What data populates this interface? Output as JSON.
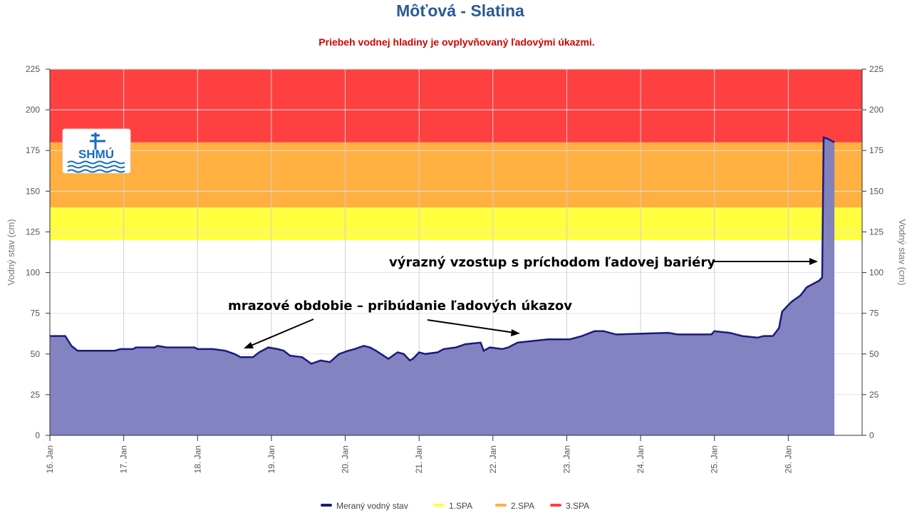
{
  "title": "Môťová - Slatina",
  "subtitle": "Priebeh vodnej hladiny je ovplyvňovaný ľadovými úkazmi.",
  "logo_text": "SHMÚ",
  "chart_data": {
    "type": "area",
    "xlim": [
      "16.01 00:00",
      "27.01 00:00"
    ],
    "ylim": [
      0,
      225
    ],
    "yticks": [
      0,
      25,
      50,
      75,
      100,
      125,
      150,
      175,
      200,
      225
    ],
    "xtick_labels": [
      "16. Jan",
      "17. Jan",
      "18. Jan",
      "19. Jan",
      "20. Jan",
      "21. Jan",
      "22. Jan",
      "23. Jan",
      "24. Jan",
      "25. Jan",
      "26. Jan"
    ],
    "ylabel_left": "Vodný stav (cm)",
    "ylabel_right": "Vodný stav (cm)",
    "grid": true,
    "legend_position": "bottom",
    "thresholds": [
      {
        "name": "1.SPA",
        "from": 120,
        "to": 140,
        "color": "#ffff40"
      },
      {
        "name": "2.SPA",
        "from": 140,
        "to": 180,
        "color": "#ffb040"
      },
      {
        "name": "3.SPA",
        "from": 180,
        "to": 225,
        "color": "#ff4040"
      }
    ],
    "series": [
      {
        "name": "Meraný vodný stav",
        "line_color": "#1a1a80",
        "fill_color": "#7f7fbf",
        "points": [
          [
            "16.01 00:00",
            61
          ],
          [
            "16.01 05:00",
            61
          ],
          [
            "16.01 07:00",
            55
          ],
          [
            "16.01 09:00",
            52
          ],
          [
            "16.01 21:00",
            52
          ],
          [
            "16.01 23:00",
            53
          ],
          [
            "17.01 03:00",
            53
          ],
          [
            "17.01 04:00",
            54
          ],
          [
            "17.01 10:00",
            54
          ],
          [
            "17.01 11:00",
            55
          ],
          [
            "17.01 14:00",
            54
          ],
          [
            "17.01 23:00",
            54
          ],
          [
            "18.01 00:00",
            53
          ],
          [
            "18.01 05:00",
            53
          ],
          [
            "18.01 09:00",
            52
          ],
          [
            "18.01 12:00",
            50
          ],
          [
            "18.01 14:00",
            48
          ],
          [
            "18.01 18:00",
            48
          ],
          [
            "18.01 20:00",
            51
          ],
          [
            "18.01 23:00",
            54
          ],
          [
            "19.01 02:00",
            53
          ],
          [
            "19.01 04:00",
            52
          ],
          [
            "19.01 06:00",
            49
          ],
          [
            "19.01 10:00",
            48
          ],
          [
            "19.01 13:00",
            44
          ],
          [
            "19.01 16:00",
            46
          ],
          [
            "19.01 19:00",
            45
          ],
          [
            "19.01 22:00",
            50
          ],
          [
            "20.01 01:00",
            52
          ],
          [
            "20.01 03:00",
            53
          ],
          [
            "20.01 06:00",
            55
          ],
          [
            "20.01 08:00",
            54
          ],
          [
            "20.01 10:00",
            52
          ],
          [
            "20.01 14:00",
            47
          ],
          [
            "20.01 17:00",
            51
          ],
          [
            "20.01 19:00",
            50
          ],
          [
            "20.01 21:00",
            46
          ],
          [
            "20.01 22:00",
            47
          ],
          [
            "21.01 00:00",
            51
          ],
          [
            "21.01 02:00",
            50
          ],
          [
            "21.01 06:00",
            51
          ],
          [
            "21.01 08:00",
            53
          ],
          [
            "21.01 12:00",
            54
          ],
          [
            "21.01 15:00",
            56
          ],
          [
            "21.01 20:00",
            57
          ],
          [
            "21.01 21:00",
            52
          ],
          [
            "21.01 23:00",
            54
          ],
          [
            "22.01 03:00",
            53
          ],
          [
            "22.01 05:00",
            54
          ],
          [
            "22.01 08:00",
            57
          ],
          [
            "22.01 13:00",
            58
          ],
          [
            "22.01 18:00",
            59
          ],
          [
            "23.01 01:00",
            59
          ],
          [
            "23.01 05:00",
            61
          ],
          [
            "23.01 09:00",
            64
          ],
          [
            "23.01 12:00",
            64
          ],
          [
            "23.01 16:00",
            62
          ],
          [
            "24.01 09:00",
            63
          ],
          [
            "24.01 12:00",
            62
          ],
          [
            "24.01 23:00",
            62
          ],
          [
            "25.01 00:00",
            64
          ],
          [
            "25.01 05:00",
            63
          ],
          [
            "25.01 09:00",
            61
          ],
          [
            "25.01 14:00",
            60
          ],
          [
            "25.01 16:00",
            61
          ],
          [
            "25.01 19:00",
            61
          ],
          [
            "25.01 21:00",
            66
          ],
          [
            "25.01 22:00",
            76
          ],
          [
            "26.01 01:00",
            82
          ],
          [
            "26.01 04:00",
            86
          ],
          [
            "26.01 06:00",
            91
          ],
          [
            "26.01 10:00",
            95
          ],
          [
            "26.01 11:00",
            97
          ],
          [
            "26.01 11:30",
            183
          ],
          [
            "26.01 13:00",
            182
          ],
          [
            "26.01 15:00",
            180
          ]
        ]
      }
    ],
    "annotations": [
      {
        "text": "výrazný vzostup s príchodom ľadovej bariéry"
      },
      {
        "text": "mrazové obdobie – pribúdanie ľadových úkazov"
      }
    ]
  }
}
